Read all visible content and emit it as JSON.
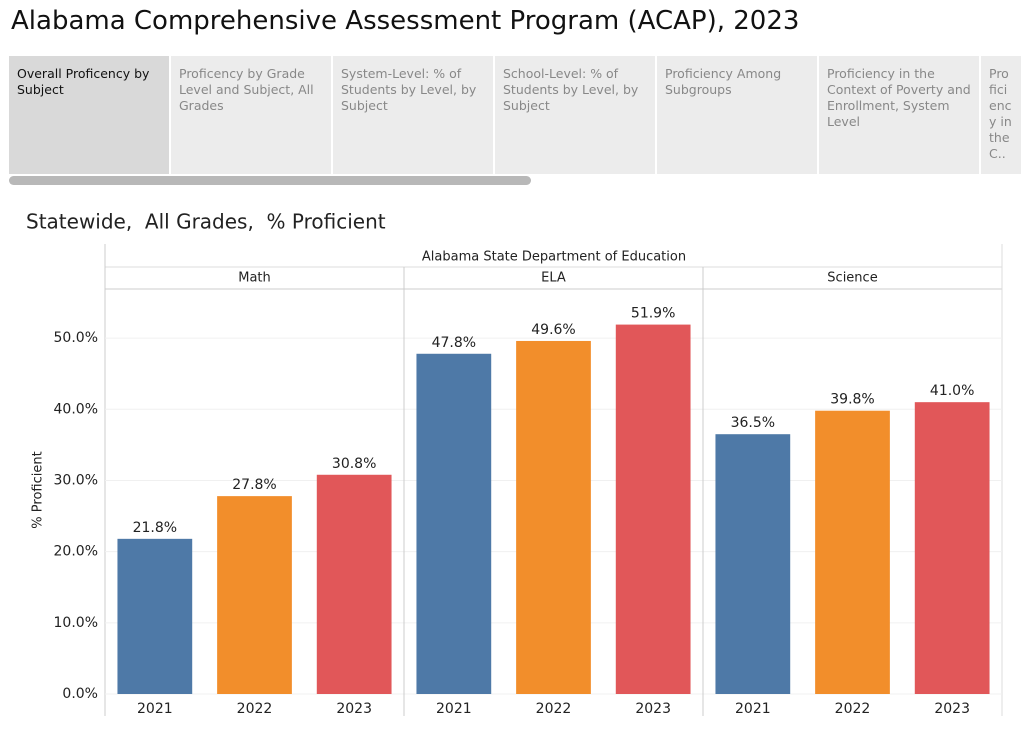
{
  "header": {
    "title": "Alabama Comprehensive Assessment Program (ACAP), 2023"
  },
  "tabs": [
    "Overall Proficency by Subject",
    "Proficency by Grade Level and Subject, All Grades",
    "System-Level: % of Students by Level, by Subject",
    "School-Level: % of Students by Level, by Subject",
    "Proficiency Among Subgroups",
    "Proficiency in the Context of Poverty and Enrollment, System Level",
    "Proficiency in the C.."
  ],
  "selected_tab": 0,
  "chart_data": {
    "type": "bar",
    "title": "Statewide,  All Grades,  % Proficient",
    "facet_title": "Alabama State Department of Education",
    "y_label": "% Proficient",
    "categories": [
      "2021",
      "2022",
      "2023"
    ],
    "colors": [
      "#4e79a7",
      "#f28e2b",
      "#e15759"
    ],
    "panels": [
      {
        "name": "Math",
        "values": [
          21.8,
          27.8,
          30.8
        ],
        "value_labels": [
          "21.8%",
          "27.8%",
          "30.8%"
        ]
      },
      {
        "name": "ELA",
        "values": [
          47.8,
          49.6,
          51.9
        ],
        "value_labels": [
          "47.8%",
          "49.6%",
          "51.9%"
        ]
      },
      {
        "name": "Science",
        "values": [
          36.5,
          39.8,
          41.0
        ],
        "value_labels": [
          "36.5%",
          "39.8%",
          "41.0%"
        ]
      }
    ],
    "ylim": [
      0,
      56.9
    ],
    "yticks": [
      {
        "value": 0,
        "label": "0.0%"
      },
      {
        "value": 10,
        "label": "10.0%"
      },
      {
        "value": 20,
        "label": "20.0%"
      },
      {
        "value": 30,
        "label": "30.0%"
      },
      {
        "value": 40,
        "label": "40.0%"
      },
      {
        "value": 50,
        "label": "50.0%"
      }
    ],
    "grid": true
  }
}
